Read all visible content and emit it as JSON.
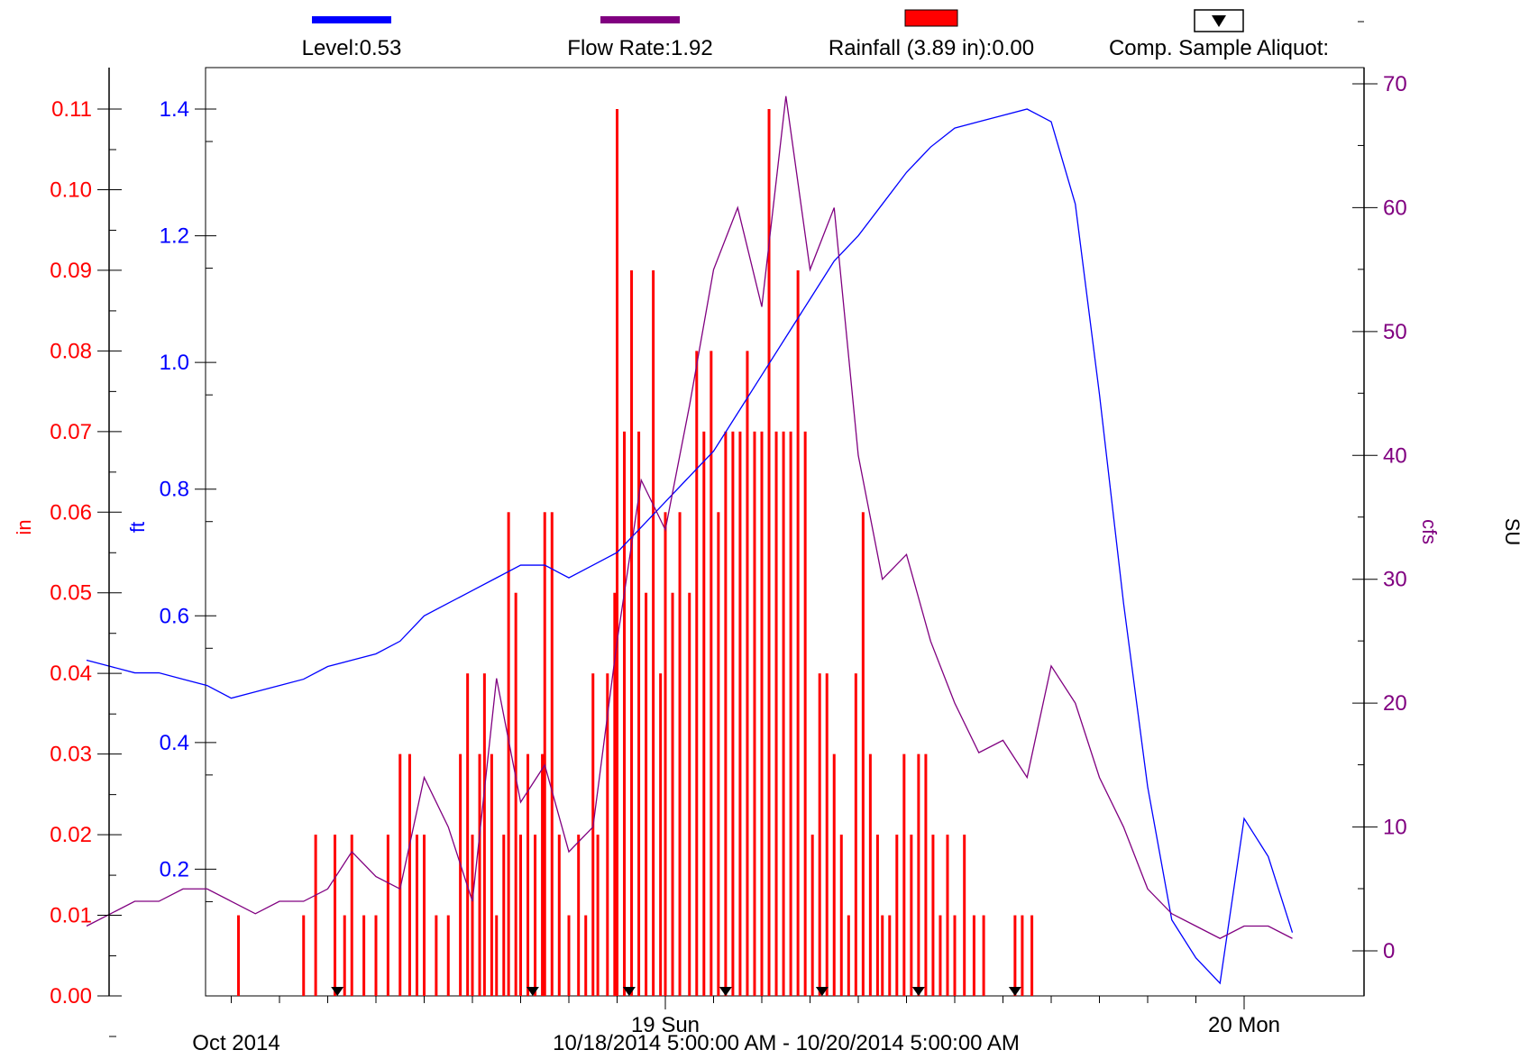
{
  "legend": [
    {
      "key": "level",
      "text": "Level:0.53",
      "color": "#0000ff",
      "swatch": "line"
    },
    {
      "key": "flow",
      "text": "Flow Rate:1.92",
      "color": "#800080",
      "swatch": "line"
    },
    {
      "key": "rain",
      "text": "Rainfall (3.89 in):0.00",
      "color": "#ff0000",
      "swatch": "box"
    },
    {
      "key": "sample",
      "text": "Comp. Sample Aliquot:",
      "color": "#000000",
      "swatch": "triangle"
    }
  ],
  "axis_titles": {
    "rain": "in",
    "level": "ft",
    "flow": "cfs",
    "sample": "SU"
  },
  "x_labels": {
    "day19": "19 Sun",
    "day20": "20 Mon",
    "month": "Oct 2014",
    "range": "10/18/2014 5:00:00 AM - 10/20/2014 5:00:00 AM"
  },
  "chart_data": {
    "type": "line",
    "title": "",
    "x": {
      "label": "10/18/2014 5:00:00 AM - 10/20/2014 5:00:00 AM",
      "unit": "hours since 10/18/2014 5:00 AM",
      "range": [
        0,
        48
      ],
      "grid": false
    },
    "axes": {
      "rain": {
        "label": "in",
        "range": [
          0,
          0.11
        ],
        "ticks": [
          "0.00",
          "0.01",
          "0.02",
          "0.03",
          "0.04",
          "0.05",
          "0.06",
          "0.07",
          "0.08",
          "0.09",
          "0.10",
          "0.11"
        ],
        "color": "#ff0000"
      },
      "level": {
        "label": "ft",
        "range": [
          0,
          1.4
        ],
        "ticks": [
          "0.2",
          "0.4",
          "0.6",
          "0.8",
          "1.0",
          "1.2",
          "1.4"
        ],
        "color": "#0000ff"
      },
      "flow": {
        "label": "cfs",
        "range": [
          0,
          70
        ],
        "ticks": [
          "0",
          "10",
          "20",
          "30",
          "40",
          "50",
          "60",
          "70"
        ],
        "color": "#800080"
      },
      "sample": {
        "label": "SU"
      }
    },
    "series": [
      {
        "name": "Level",
        "axis": "level",
        "color": "#0000ff",
        "points": [
          [
            0,
            0.53
          ],
          [
            1,
            0.52
          ],
          [
            2,
            0.51
          ],
          [
            3,
            0.51
          ],
          [
            4,
            0.5
          ],
          [
            5,
            0.49
          ],
          [
            6,
            0.47
          ],
          [
            7,
            0.48
          ],
          [
            8,
            0.49
          ],
          [
            9,
            0.5
          ],
          [
            10,
            0.52
          ],
          [
            11,
            0.53
          ],
          [
            12,
            0.54
          ],
          [
            13,
            0.56
          ],
          [
            14,
            0.6
          ],
          [
            15,
            0.62
          ],
          [
            16,
            0.64
          ],
          [
            17,
            0.66
          ],
          [
            18,
            0.68
          ],
          [
            19,
            0.68
          ],
          [
            20,
            0.66
          ],
          [
            21,
            0.68
          ],
          [
            22,
            0.7
          ],
          [
            23,
            0.74
          ],
          [
            24,
            0.78
          ],
          [
            25,
            0.82
          ],
          [
            26,
            0.86
          ],
          [
            27,
            0.92
          ],
          [
            28,
            0.98
          ],
          [
            29,
            1.04
          ],
          [
            30,
            1.1
          ],
          [
            31,
            1.16
          ],
          [
            32,
            1.2
          ],
          [
            33,
            1.25
          ],
          [
            34,
            1.3
          ],
          [
            35,
            1.34
          ],
          [
            36,
            1.37
          ],
          [
            37,
            1.38
          ],
          [
            38,
            1.39
          ],
          [
            39,
            1.4
          ],
          [
            40,
            1.38
          ],
          [
            41,
            1.25
          ],
          [
            42,
            0.95
          ],
          [
            43,
            0.62
          ],
          [
            44,
            0.33
          ],
          [
            45,
            0.12
          ],
          [
            46,
            0.06
          ],
          [
            47,
            0.02
          ],
          [
            48,
            0.28
          ],
          [
            49,
            0.22
          ],
          [
            50,
            0.1
          ]
        ]
      },
      {
        "name": "Flow Rate",
        "axis": "flow",
        "color": "#800080",
        "points": [
          [
            0,
            2
          ],
          [
            1,
            3
          ],
          [
            2,
            4
          ],
          [
            3,
            4
          ],
          [
            4,
            5
          ],
          [
            5,
            5
          ],
          [
            6,
            4
          ],
          [
            7,
            3
          ],
          [
            8,
            4
          ],
          [
            9,
            4
          ],
          [
            10,
            5
          ],
          [
            11,
            8
          ],
          [
            12,
            6
          ],
          [
            13,
            5
          ],
          [
            14,
            14
          ],
          [
            15,
            10
          ],
          [
            16,
            4
          ],
          [
            17,
            22
          ],
          [
            18,
            12
          ],
          [
            19,
            15
          ],
          [
            20,
            8
          ],
          [
            21,
            10
          ],
          [
            22,
            25
          ],
          [
            23,
            38
          ],
          [
            24,
            34
          ],
          [
            25,
            44
          ],
          [
            26,
            55
          ],
          [
            27,
            60
          ],
          [
            28,
            52
          ],
          [
            29,
            69
          ],
          [
            30,
            55
          ],
          [
            31,
            60
          ],
          [
            32,
            40
          ],
          [
            33,
            30
          ],
          [
            34,
            32
          ],
          [
            35,
            25
          ],
          [
            36,
            20
          ],
          [
            37,
            16
          ],
          [
            38,
            17
          ],
          [
            39,
            14
          ],
          [
            40,
            23
          ],
          [
            41,
            20
          ],
          [
            42,
            14
          ],
          [
            43,
            10
          ],
          [
            44,
            5
          ],
          [
            45,
            3
          ],
          [
            46,
            2
          ],
          [
            47,
            1
          ],
          [
            48,
            2
          ],
          [
            49,
            2
          ],
          [
            50,
            1
          ]
        ]
      },
      {
        "name": "Rainfall (3.89 in)",
        "axis": "rain",
        "type": "bar",
        "color": "#ff0000",
        "points": [
          [
            6.3,
            0.01
          ],
          [
            9,
            0.01
          ],
          [
            9.5,
            0.02
          ],
          [
            10.3,
            0.02
          ],
          [
            10.7,
            0.01
          ],
          [
            11,
            0.02
          ],
          [
            11.5,
            0.01
          ],
          [
            12,
            0.01
          ],
          [
            12.5,
            0.02
          ],
          [
            13,
            0.03
          ],
          [
            13.4,
            0.03
          ],
          [
            13.7,
            0.02
          ],
          [
            14,
            0.02
          ],
          [
            14.5,
            0.01
          ],
          [
            15,
            0.01
          ],
          [
            15.5,
            0.03
          ],
          [
            15.8,
            0.04
          ],
          [
            16,
            0.02
          ],
          [
            16.3,
            0.03
          ],
          [
            16.5,
            0.04
          ],
          [
            16.8,
            0.03
          ],
          [
            17,
            0.01
          ],
          [
            17.3,
            0.02
          ],
          [
            17.5,
            0.06
          ],
          [
            17.8,
            0.05
          ],
          [
            18,
            0.02
          ],
          [
            18.3,
            0.03
          ],
          [
            18.6,
            0.02
          ],
          [
            18.9,
            0.03
          ],
          [
            19,
            0.06
          ],
          [
            19.3,
            0.06
          ],
          [
            19.6,
            0.02
          ],
          [
            20,
            0.01
          ],
          [
            20.4,
            0.02
          ],
          [
            20.7,
            0.01
          ],
          [
            21,
            0.04
          ],
          [
            21.2,
            0.02
          ],
          [
            21.6,
            0.04
          ],
          [
            21.9,
            0.05
          ],
          [
            22,
            0.11
          ],
          [
            22.3,
            0.07
          ],
          [
            22.6,
            0.09
          ],
          [
            22.9,
            0.07
          ],
          [
            23.2,
            0.05
          ],
          [
            23.5,
            0.09
          ],
          [
            23.8,
            0.04
          ],
          [
            24,
            0.06
          ],
          [
            24.3,
            0.05
          ],
          [
            24.6,
            0.06
          ],
          [
            25,
            0.05
          ],
          [
            25.3,
            0.08
          ],
          [
            25.6,
            0.07
          ],
          [
            25.9,
            0.08
          ],
          [
            26.2,
            0.06
          ],
          [
            26.5,
            0.07
          ],
          [
            26.8,
            0.07
          ],
          [
            27.1,
            0.07
          ],
          [
            27.4,
            0.08
          ],
          [
            27.7,
            0.07
          ],
          [
            28,
            0.07
          ],
          [
            28.3,
            0.11
          ],
          [
            28.6,
            0.07
          ],
          [
            28.9,
            0.07
          ],
          [
            29.2,
            0.07
          ],
          [
            29.5,
            0.09
          ],
          [
            29.8,
            0.07
          ],
          [
            30.1,
            0.02
          ],
          [
            30.4,
            0.04
          ],
          [
            30.7,
            0.04
          ],
          [
            31,
            0.03
          ],
          [
            31.3,
            0.02
          ],
          [
            31.6,
            0.01
          ],
          [
            31.9,
            0.04
          ],
          [
            32.2,
            0.06
          ],
          [
            32.5,
            0.03
          ],
          [
            32.8,
            0.02
          ],
          [
            33,
            0.01
          ],
          [
            33.3,
            0.01
          ],
          [
            33.6,
            0.02
          ],
          [
            33.9,
            0.03
          ],
          [
            34.2,
            0.02
          ],
          [
            34.5,
            0.03
          ],
          [
            34.8,
            0.03
          ],
          [
            35.1,
            0.02
          ],
          [
            35.4,
            0.01
          ],
          [
            35.7,
            0.02
          ],
          [
            36,
            0.01
          ],
          [
            36.4,
            0.02
          ],
          [
            36.8,
            0.01
          ],
          [
            37.2,
            0.01
          ],
          [
            38.5,
            0.01
          ],
          [
            38.8,
            0.01
          ],
          [
            39.2,
            0.01
          ]
        ]
      },
      {
        "name": "Comp. Sample Aliquot",
        "axis": "sample",
        "type": "scatter",
        "marker": "triangle",
        "color": "#000000",
        "points": [
          [
            10.4,
            0
          ],
          [
            18.5,
            0
          ],
          [
            22.5,
            0
          ],
          [
            26.5,
            0
          ],
          [
            30.5,
            0
          ],
          [
            34.5,
            0
          ],
          [
            38.5,
            0
          ]
        ]
      }
    ]
  }
}
